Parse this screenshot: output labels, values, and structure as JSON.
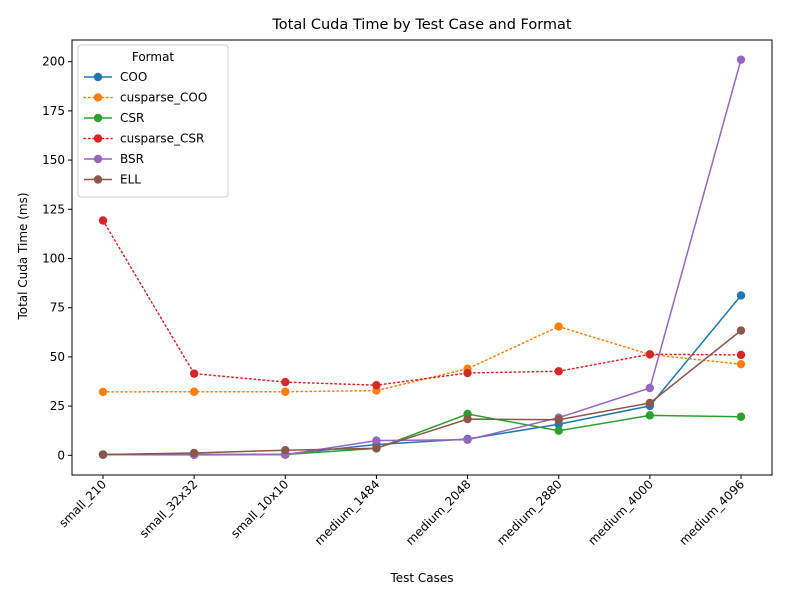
{
  "chart_data": {
    "type": "line",
    "title": "Total Cuda Time by Test Case and Format",
    "xlabel": "Test Cases",
    "ylabel": "Total Cuda Time (ms)",
    "categories": [
      "small_210",
      "small_32x32",
      "small_10x10",
      "medium_1484",
      "medium_2048",
      "medium_2880",
      "medium_4000",
      "medium_4096"
    ],
    "ylim": [
      -10,
      211
    ],
    "yticks": [
      0,
      25,
      50,
      75,
      100,
      125,
      150,
      175,
      200
    ],
    "grid": false,
    "legend": {
      "title": "Format",
      "placement": "top-left"
    },
    "series": [
      {
        "name": "COO",
        "color": "#1f77b4",
        "style": "solid",
        "values": [
          0.3,
          0.4,
          0.5,
          5.5,
          8.3,
          15.8,
          25.1,
          81.2
        ]
      },
      {
        "name": "cusparse_COO",
        "color": "#ff7f0e",
        "style": "dotted",
        "values": [
          32.2,
          32.3,
          32.3,
          32.9,
          44.0,
          65.4,
          51.2,
          46.3
        ]
      },
      {
        "name": "CSR",
        "color": "#2ca02c",
        "style": "solid",
        "values": [
          0.4,
          0.3,
          0.4,
          3.5,
          21.0,
          12.5,
          20.3,
          19.6
        ]
      },
      {
        "name": "cusparse_CSR",
        "color": "#d62728",
        "style": "dotted",
        "values": [
          119.3,
          41.5,
          37.2,
          35.6,
          41.8,
          42.7,
          51.3,
          51.0
        ]
      },
      {
        "name": "BSR",
        "color": "#9467bd",
        "style": "solid",
        "values": [
          0.3,
          0.2,
          0.3,
          7.5,
          7.9,
          19.1,
          34.2,
          201.0
        ]
      },
      {
        "name": "ELL",
        "color": "#8c564b",
        "style": "solid",
        "values": [
          0.4,
          1.2,
          2.6,
          3.6,
          18.4,
          18.1,
          26.6,
          63.4
        ]
      }
    ]
  }
}
